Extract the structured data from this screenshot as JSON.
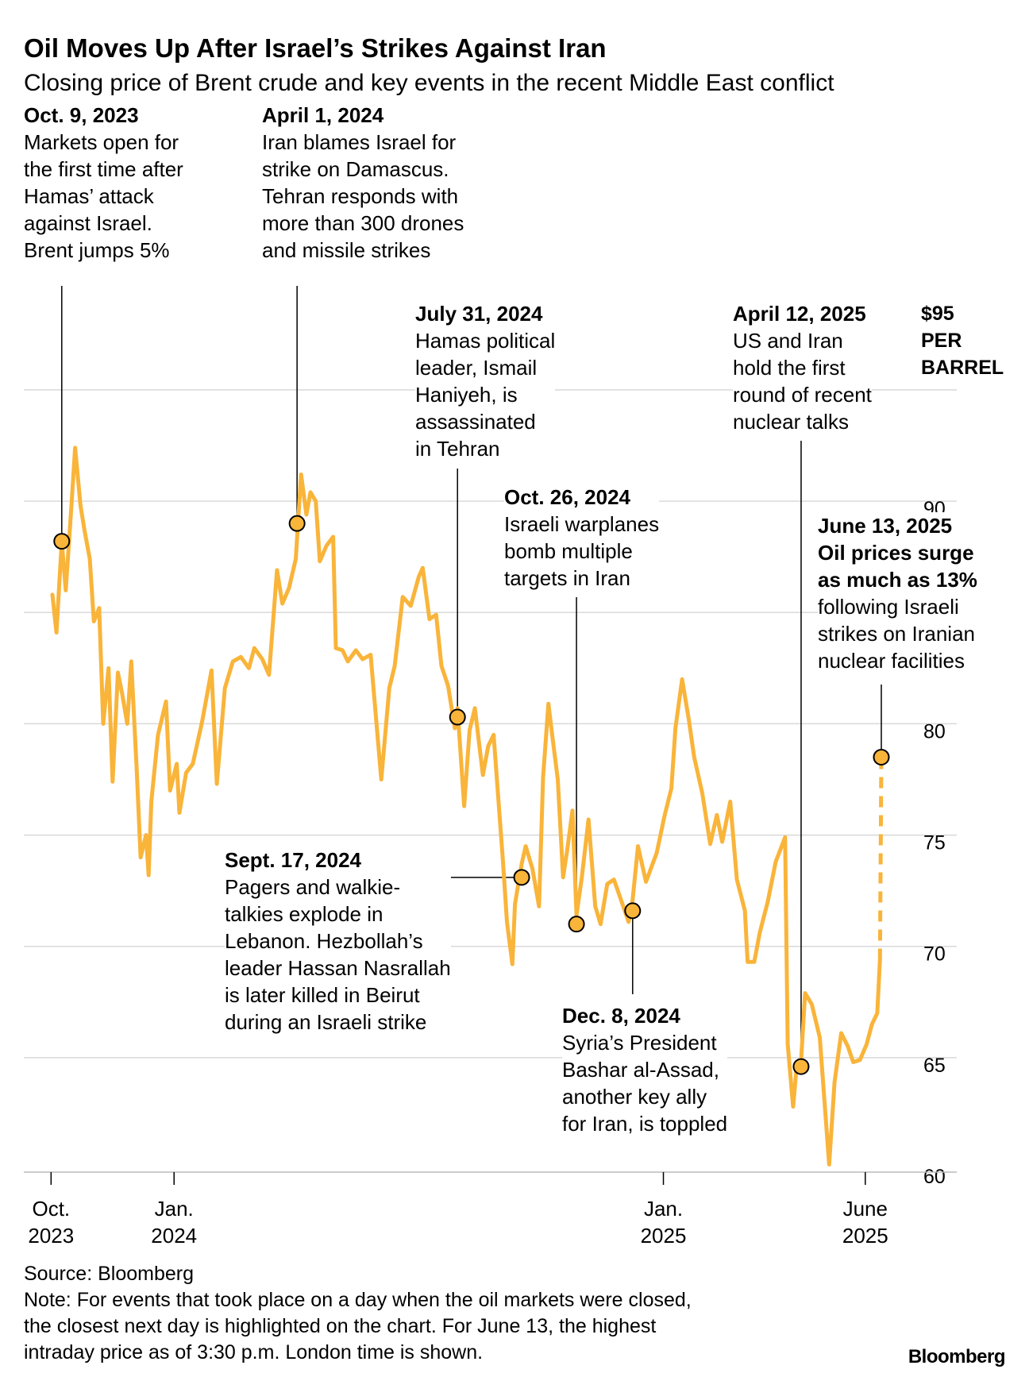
{
  "title": "Oil Moves Up After Israel’s Strikes Against Iran",
  "subtitle": "Closing price of Brent crude and key events in the recent Middle East conflict",
  "unit_label": [
    "$95",
    "PER",
    "BARREL"
  ],
  "annotations": [
    {
      "date": "Oct. 9, 2023",
      "lines": [
        "Markets open for",
        "the first time after",
        "Hamas’ attack",
        "against Israel.",
        "Brent jumps 5%"
      ]
    },
    {
      "date": "April 1, 2024",
      "lines": [
        "Iran blames Israel for",
        "strike on Damascus.",
        "Tehran responds with",
        "more than 300 drones",
        "and missile strikes"
      ]
    },
    {
      "date": "July 31, 2024",
      "lines": [
        "Hamas political",
        "leader, Ismail",
        "Haniyeh, is",
        "assassinated",
        "in Tehran"
      ]
    },
    {
      "date": "Oct. 26, 2024",
      "lines": [
        "Israeli warplanes",
        "bomb multiple",
        "targets in Iran"
      ]
    },
    {
      "date": "April 12, 2025",
      "lines": [
        "US and Iran",
        "hold the first",
        "round of recent",
        "nuclear talks"
      ]
    },
    {
      "date": "June 13, 2025",
      "bold_lines": [
        "Oil prices surge",
        "as much as 13%"
      ],
      "lines": [
        "following Israeli",
        "strikes on Iranian",
        "nuclear facilities"
      ]
    },
    {
      "date": "Sept. 17, 2024",
      "lines": [
        "Pagers and walkie-",
        "talkies explode in",
        "Lebanon. Hezbollah’s",
        "leader Hassan Nasrallah",
        "is later killed in Beirut",
        "during an Israeli strike"
      ]
    },
    {
      "date": "Dec. 8, 2024",
      "lines": [
        "Syria’s President",
        "Bashar al-Assad,",
        "another key ally",
        "for Iran, is toppled"
      ]
    }
  ],
  "footer": {
    "source": "Source: Bloomberg",
    "note": [
      "Note: For events that took place on a day when the oil markets were closed,",
      "the closest next day is highlighted on the chart. For June 13, the highest",
      "intraday price as of 3:30 p.m. London time is shown."
    ],
    "logo": "Bloomberg"
  },
  "colors": {
    "line": "#F9B43A",
    "grid": "#D9D9D9",
    "marker_stroke": "#000000"
  },
  "chart_data": {
    "type": "line",
    "title": "Closing price of Brent crude",
    "ylabel": "$ per barrel",
    "xlabel": "",
    "ylim": [
      60,
      95
    ],
    "y_ticks": [
      60,
      65,
      70,
      75,
      80,
      85,
      90,
      95
    ],
    "y_tick_labels": [
      "60",
      "65",
      "70",
      "75",
      "80",
      "",
      "90",
      "$95"
    ],
    "x_range": [
      "2023-10-02",
      "2025-06-13"
    ],
    "x_ticks": [
      {
        "date": "2023-10-01",
        "label": [
          "Oct.",
          "2023"
        ]
      },
      {
        "date": "2024-01-01",
        "label": [
          "Jan.",
          "2024"
        ]
      },
      {
        "date": "2025-01-01",
        "label": [
          "Jan.",
          "2025"
        ]
      },
      {
        "date": "2025-06-01",
        "label": [
          "June",
          "2025"
        ]
      }
    ],
    "series": [
      {
        "name": "Brent crude",
        "points": [
          [
            "2023-10-02",
            85.8
          ],
          [
            "2023-10-05",
            84.1
          ],
          [
            "2023-10-09",
            88.2
          ],
          [
            "2023-10-12",
            86.0
          ],
          [
            "2023-10-16",
            89.6
          ],
          [
            "2023-10-19",
            92.4
          ],
          [
            "2023-10-23",
            89.8
          ],
          [
            "2023-10-26",
            88.7
          ],
          [
            "2023-10-30",
            87.4
          ],
          [
            "2023-11-02",
            84.6
          ],
          [
            "2023-11-06",
            85.2
          ],
          [
            "2023-11-09",
            80.0
          ],
          [
            "2023-11-13",
            82.5
          ],
          [
            "2023-11-16",
            77.4
          ],
          [
            "2023-11-20",
            82.3
          ],
          [
            "2023-11-23",
            81.4
          ],
          [
            "2023-11-27",
            80.0
          ],
          [
            "2023-11-30",
            82.8
          ],
          [
            "2023-12-04",
            78.0
          ],
          [
            "2023-12-07",
            74.0
          ],
          [
            "2023-12-11",
            75.0
          ],
          [
            "2023-12-13",
            73.2
          ],
          [
            "2023-12-15",
            76.5
          ],
          [
            "2023-12-20",
            79.5
          ],
          [
            "2023-12-26",
            81.0
          ],
          [
            "2023-12-29",
            77.0
          ],
          [
            "2024-01-03",
            78.2
          ],
          [
            "2024-01-05",
            76.0
          ],
          [
            "2024-01-10",
            77.8
          ],
          [
            "2024-01-15",
            78.2
          ],
          [
            "2024-01-22",
            80.1
          ],
          [
            "2024-01-29",
            82.4
          ],
          [
            "2024-02-02",
            77.3
          ],
          [
            "2024-02-08",
            81.6
          ],
          [
            "2024-02-14",
            82.8
          ],
          [
            "2024-02-20",
            83.0
          ],
          [
            "2024-02-26",
            82.5
          ],
          [
            "2024-03-01",
            83.4
          ],
          [
            "2024-03-07",
            82.9
          ],
          [
            "2024-03-12",
            82.2
          ],
          [
            "2024-03-18",
            86.9
          ],
          [
            "2024-03-22",
            85.4
          ],
          [
            "2024-03-27",
            86.1
          ],
          [
            "2024-04-01",
            87.4
          ],
          [
            "2024-04-05",
            91.2
          ],
          [
            "2024-04-09",
            89.4
          ],
          [
            "2024-04-12",
            90.4
          ],
          [
            "2024-04-16",
            90.0
          ],
          [
            "2024-04-19",
            87.3
          ],
          [
            "2024-04-24",
            88.0
          ],
          [
            "2024-04-29",
            88.4
          ],
          [
            "2024-05-01",
            83.4
          ],
          [
            "2024-05-06",
            83.3
          ],
          [
            "2024-05-10",
            82.8
          ],
          [
            "2024-05-16",
            83.3
          ],
          [
            "2024-05-21",
            82.9
          ],
          [
            "2024-05-27",
            83.1
          ],
          [
            "2024-06-04",
            77.5
          ],
          [
            "2024-06-10",
            81.6
          ],
          [
            "2024-06-14",
            82.6
          ],
          [
            "2024-06-20",
            85.7
          ],
          [
            "2024-06-26",
            85.3
          ],
          [
            "2024-07-02",
            86.6
          ],
          [
            "2024-07-05",
            87.0
          ],
          [
            "2024-07-10",
            84.7
          ],
          [
            "2024-07-15",
            84.9
          ],
          [
            "2024-07-19",
            82.6
          ],
          [
            "2024-07-24",
            81.7
          ],
          [
            "2024-07-29",
            79.8
          ],
          [
            "2024-07-31",
            80.7
          ],
          [
            "2024-08-05",
            76.3
          ],
          [
            "2024-08-09",
            79.7
          ],
          [
            "2024-08-13",
            80.7
          ],
          [
            "2024-08-19",
            77.7
          ],
          [
            "2024-08-23",
            79.0
          ],
          [
            "2024-08-27",
            79.5
          ],
          [
            "2024-09-03",
            73.8
          ],
          [
            "2024-09-06",
            71.1
          ],
          [
            "2024-09-10",
            69.2
          ],
          [
            "2024-09-12",
            71.9
          ],
          [
            "2024-09-17",
            73.7
          ],
          [
            "2024-09-20",
            74.5
          ],
          [
            "2024-09-25",
            73.5
          ],
          [
            "2024-09-30",
            71.8
          ],
          [
            "2024-10-03",
            77.6
          ],
          [
            "2024-10-07",
            80.9
          ],
          [
            "2024-10-10",
            79.4
          ],
          [
            "2024-10-14",
            77.5
          ],
          [
            "2024-10-18",
            73.1
          ],
          [
            "2024-10-21",
            74.3
          ],
          [
            "2024-10-25",
            76.1
          ],
          [
            "2024-10-28",
            71.4
          ],
          [
            "2024-11-01",
            73.1
          ],
          [
            "2024-11-06",
            75.7
          ],
          [
            "2024-11-11",
            71.8
          ],
          [
            "2024-11-15",
            71.0
          ],
          [
            "2024-11-20",
            72.8
          ],
          [
            "2024-11-25",
            73.0
          ],
          [
            "2024-12-02",
            71.8
          ],
          [
            "2024-12-06",
            71.1
          ],
          [
            "2024-12-09",
            72.1
          ],
          [
            "2024-12-13",
            74.5
          ],
          [
            "2024-12-19",
            72.9
          ],
          [
            "2024-12-27",
            74.2
          ],
          [
            "2025-01-02",
            75.9
          ],
          [
            "2025-01-07",
            77.1
          ],
          [
            "2025-01-10",
            79.8
          ],
          [
            "2025-01-15",
            82.0
          ],
          [
            "2025-01-20",
            80.2
          ],
          [
            "2025-01-24",
            78.5
          ],
          [
            "2025-01-30",
            76.9
          ],
          [
            "2025-02-05",
            74.6
          ],
          [
            "2025-02-10",
            75.9
          ],
          [
            "2025-02-14",
            74.7
          ],
          [
            "2025-02-20",
            76.5
          ],
          [
            "2025-02-25",
            73.0
          ],
          [
            "2025-03-03",
            71.6
          ],
          [
            "2025-03-05",
            69.3
          ],
          [
            "2025-03-10",
            69.3
          ],
          [
            "2025-03-14",
            70.6
          ],
          [
            "2025-03-20",
            72.0
          ],
          [
            "2025-03-26",
            73.8
          ],
          [
            "2025-04-02",
            74.9
          ],
          [
            "2025-04-04",
            65.6
          ],
          [
            "2025-04-08",
            62.8
          ],
          [
            "2025-04-11",
            64.8
          ],
          [
            "2025-04-14",
            64.9
          ],
          [
            "2025-04-17",
            67.9
          ],
          [
            "2025-04-22",
            67.4
          ],
          [
            "2025-04-28",
            65.9
          ],
          [
            "2025-05-05",
            60.2
          ],
          [
            "2025-05-09",
            63.9
          ],
          [
            "2025-05-14",
            66.1
          ],
          [
            "2025-05-19",
            65.5
          ],
          [
            "2025-05-23",
            64.8
          ],
          [
            "2025-05-28",
            64.9
          ],
          [
            "2025-06-02",
            65.6
          ],
          [
            "2025-06-06",
            66.5
          ],
          [
            "2025-06-10",
            67.0
          ],
          [
            "2025-06-12",
            69.4
          ]
        ]
      },
      {
        "name": "June 13 intraday high (dashed)",
        "style": "dashed",
        "points": [
          [
            "2025-06-12",
            69.4
          ],
          [
            "2025-06-13",
            78.5
          ]
        ]
      }
    ],
    "events": [
      {
        "date": "2023-10-09",
        "value": 88.2,
        "label": "Oct. 9, 2023"
      },
      {
        "date": "2024-04-02",
        "value": 89.0,
        "label": "April 1, 2024"
      },
      {
        "date": "2024-07-31",
        "value": 80.3,
        "label": "July 31, 2024"
      },
      {
        "date": "2024-09-17",
        "value": 73.1,
        "label": "Sept. 17, 2024"
      },
      {
        "date": "2024-10-28",
        "value": 71.0,
        "label": "Oct. 26, 2024"
      },
      {
        "date": "2024-12-09",
        "value": 71.6,
        "label": "Dec. 8, 2024"
      },
      {
        "date": "2025-04-14",
        "value": 64.6,
        "label": "April 12, 2025"
      },
      {
        "date": "2025-06-13",
        "value": 78.5,
        "label": "June 13, 2025"
      }
    ]
  }
}
